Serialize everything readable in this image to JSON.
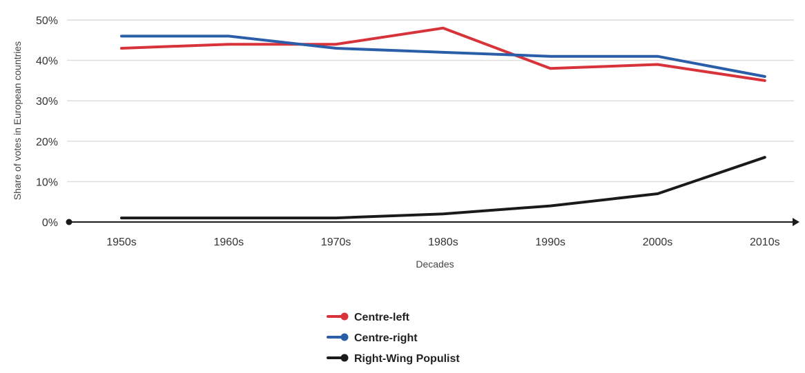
{
  "chart_data": {
    "type": "line",
    "title": "",
    "xlabel": "Decades",
    "ylabel": "Share of votes in European countries",
    "categories": [
      "1950s",
      "1960s",
      "1970s",
      "1980s",
      "1990s",
      "2000s",
      "2010s"
    ],
    "ylim": [
      0,
      50
    ],
    "yticks": [
      0,
      10,
      20,
      30,
      40,
      50
    ],
    "ytick_labels": [
      "0%",
      "10%",
      "20%",
      "30%",
      "40%",
      "50%"
    ],
    "grid": true,
    "legend_position": "bottom-center",
    "series": [
      {
        "name": "Centre-left",
        "color": "#d8323a",
        "values": [
          43,
          44,
          44,
          48,
          38,
          39,
          35
        ]
      },
      {
        "name": "Centre-right",
        "color": "#2a5ea8",
        "values": [
          46,
          46,
          43,
          42,
          41,
          41,
          36
        ]
      },
      {
        "name": "Right-Wing Populist",
        "color": "#1a1a1a",
        "values": [
          1,
          1,
          1,
          2,
          4,
          7,
          16
        ]
      }
    ]
  }
}
